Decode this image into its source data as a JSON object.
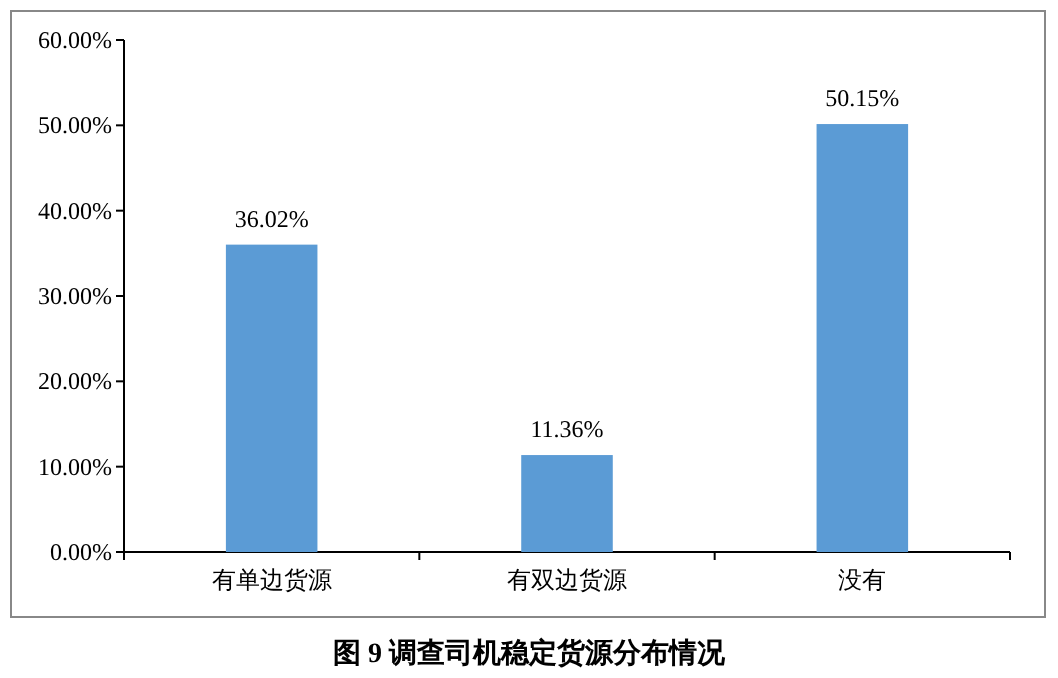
{
  "chart_data": {
    "type": "bar",
    "title": "图 9  调查司机稳定货源分布情况",
    "categories": [
      "有单边货源",
      "有双边货源",
      "没有"
    ],
    "values": [
      36.02,
      11.36,
      50.15
    ],
    "value_labels": [
      "36.02%",
      "11.36%",
      "50.15%"
    ],
    "color": "#5b9bd5",
    "ylim": [
      0,
      60
    ],
    "yticks": [
      {
        "value": 0,
        "label": "0.00%"
      },
      {
        "value": 10,
        "label": "10.00%"
      },
      {
        "value": 20,
        "label": "20.00%"
      },
      {
        "value": 30,
        "label": "30.00%"
      },
      {
        "value": 40,
        "label": "40.00%"
      },
      {
        "value": 50,
        "label": "50.00%"
      },
      {
        "value": 60,
        "label": "60.00%"
      }
    ],
    "grid": false
  }
}
